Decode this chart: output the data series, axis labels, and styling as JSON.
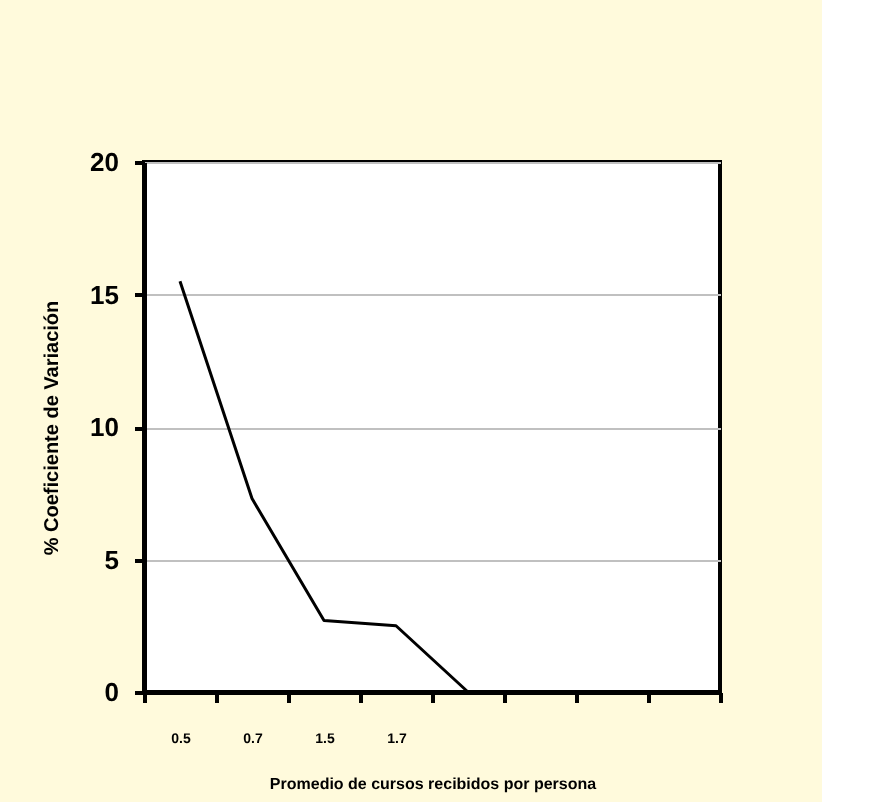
{
  "chart_data": {
    "type": "line",
    "xlabel": "Promedio de cursos recibidos por persona",
    "ylabel": "% Coeficiente de Variación",
    "categories": [
      "0.5",
      "0.7",
      "1.5",
      "1.7",
      null,
      null,
      null,
      null
    ],
    "series": [
      {
        "color": "#000000",
        "values": [
          15.5,
          7.3,
          2.7,
          2.5,
          0,
          0,
          0,
          0
        ]
      }
    ],
    "ylim": [
      0,
      20
    ],
    "yticks": [
      0,
      5,
      10,
      15,
      20
    ],
    "grid": "y",
    "legend": false,
    "marker": "none",
    "line_style": "solid"
  }
}
